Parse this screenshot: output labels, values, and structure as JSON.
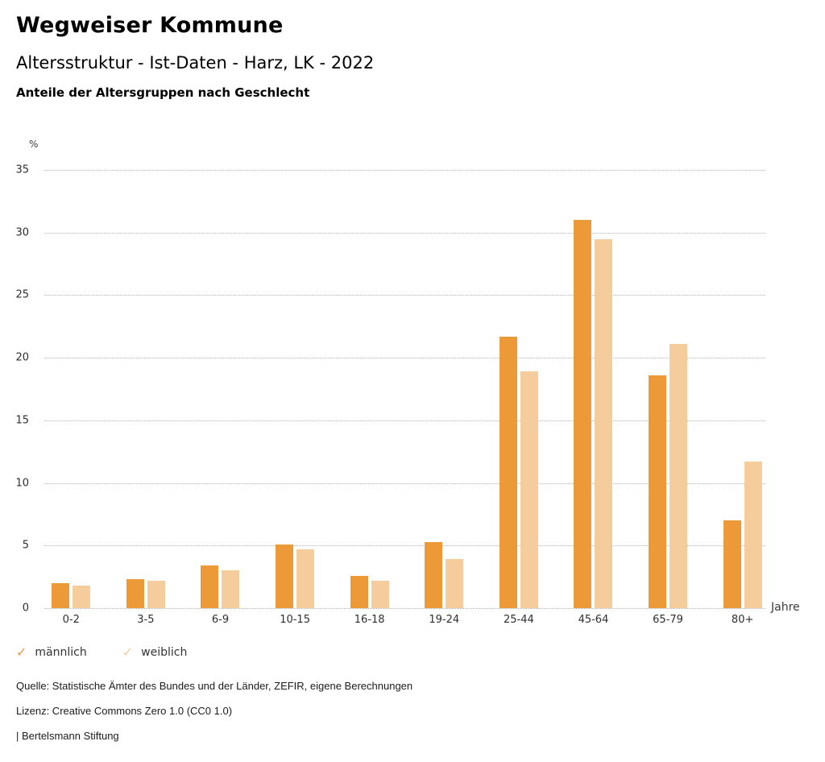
{
  "header": {
    "title": "Wegweiser Kommune",
    "subtitle": "Altersstruktur - Ist-Daten - Harz, LK - 2022",
    "chart_heading": "Anteile der Altersgruppen nach Geschlecht"
  },
  "chart_data": {
    "type": "bar",
    "title": "Anteile der Altersgruppen nach Geschlecht",
    "categories": [
      "0-2",
      "3-5",
      "6-9",
      "10-15",
      "16-18",
      "19-24",
      "25-44",
      "45-64",
      "65-79",
      "80+"
    ],
    "series": [
      {
        "name": "männlich",
        "color": "#EC9938",
        "values": [
          2.0,
          2.3,
          3.4,
          5.1,
          2.6,
          5.3,
          21.7,
          31.0,
          18.6,
          7.0
        ]
      },
      {
        "name": "weiblich",
        "color": "#F5CD9D",
        "values": [
          1.8,
          2.2,
          3.0,
          4.7,
          2.2,
          3.9,
          18.9,
          29.5,
          21.1,
          11.7
        ]
      }
    ],
    "ylabel": "%",
    "xlabel": "Jahre",
    "ylim": [
      0,
      35
    ],
    "ytick_step": 5,
    "grid": "horizontal-dotted",
    "legend_position": "bottom-left"
  },
  "legend": {
    "check_icon": "✓"
  },
  "footer": {
    "source": "Quelle: Statistische Ämter des Bundes und der Länder, ZEFIR, eigene Berechnungen",
    "license": "Lizenz: Creative Commons Zero 1.0 (CC0 1.0)",
    "attribution": "| Bertelsmann Stiftung"
  }
}
